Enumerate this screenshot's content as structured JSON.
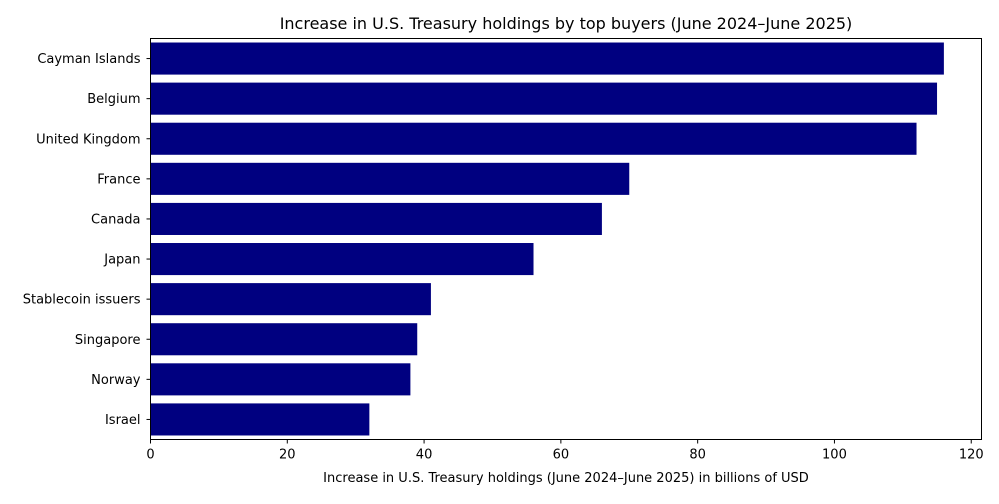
{
  "chart_data": {
    "type": "bar",
    "orientation": "horizontal",
    "title": "Increase in U.S. Treasury holdings by top buyers (June 2024–June 2025)",
    "xlabel": "Increase in U.S. Treasury holdings (June 2024–June 2025) in billions of USD",
    "ylabel": "",
    "categories": [
      "Cayman Islands",
      "Belgium",
      "United Kingdom",
      "France",
      "Canada",
      "Japan",
      "Stablecoin issuers",
      "Singapore",
      "Norway",
      "Israel"
    ],
    "values": [
      116,
      115,
      112,
      70,
      66,
      56,
      41,
      39,
      38,
      32
    ],
    "xlim": [
      0,
      121.5
    ],
    "xticks": [
      0,
      20,
      40,
      60,
      80,
      100,
      120
    ],
    "bar_color": "#000080",
    "grid": false,
    "legend": "none"
  }
}
